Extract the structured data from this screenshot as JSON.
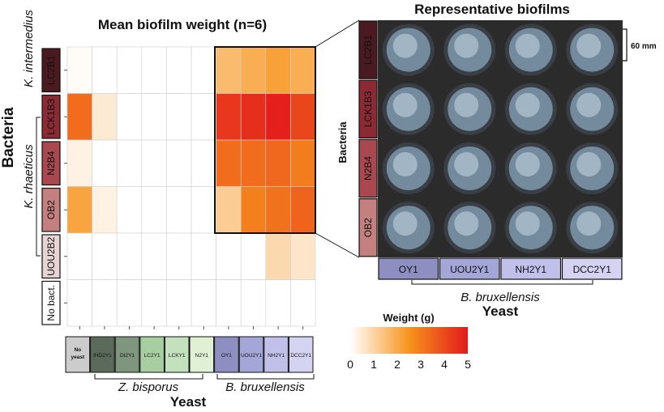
{
  "chart_data": [
    {
      "type": "heatmap",
      "title": "Mean biofilm weight (n=6)",
      "xlabel": "Yeast",
      "ylabel": "Bacteria",
      "x_categories": [
        "No yeast",
        "IHD2Y1",
        "DI2Y1",
        "LC2Y1",
        "LCKY1",
        "N2Y1",
        "OY1",
        "UOU2Y1",
        "NH2Y1",
        "DCC2Y1"
      ],
      "y_categories": [
        "LC2B1",
        "LCK1B3",
        "N2B4",
        "OB2",
        "UOU2B2",
        "No bact."
      ],
      "x_groups": [
        {
          "name": "Z. bisporus",
          "categories": [
            "IHD2Y1",
            "DI2Y1",
            "LC2Y1",
            "LCKY1",
            "N2Y1"
          ]
        },
        {
          "name": "B. bruxellensis",
          "categories": [
            "OY1",
            "UOU2Y1",
            "NH2Y1",
            "DCC2Y1"
          ]
        }
      ],
      "y_groups": [
        {
          "name": "K. intermedius",
          "categories": [
            "LC2B1"
          ]
        },
        {
          "name": "K. rhaeticus",
          "categories": [
            "LCK1B3",
            "N2B4",
            "OB2",
            "UOU2B2"
          ]
        }
      ],
      "values": [
        [
          0.1,
          0.0,
          0.0,
          0.0,
          0.0,
          0.0,
          1.6,
          1.9,
          2.2,
          1.9
        ],
        [
          3.3,
          0.5,
          0.0,
          0.0,
          0.0,
          0.0,
          4.4,
          4.6,
          4.9,
          4.1
        ],
        [
          0.3,
          0.0,
          0.0,
          0.0,
          0.0,
          0.0,
          3.3,
          3.3,
          3.4,
          3.0
        ],
        [
          2.1,
          0.3,
          0.0,
          0.0,
          0.0,
          0.0,
          1.2,
          2.9,
          3.2,
          3.5
        ],
        [
          0.0,
          0.0,
          0.0,
          0.0,
          0.0,
          0.0,
          0.0,
          0.0,
          0.9,
          0.6
        ],
        [
          0.0,
          0.0,
          0.0,
          0.0,
          0.0,
          0.0,
          0.0,
          0.0,
          0.0,
          0.0
        ]
      ],
      "legend": {
        "title": "Weight (g)",
        "ticks": [
          0,
          1,
          2,
          3,
          4,
          5
        ],
        "min": 0,
        "max": 5,
        "colors": [
          "#ffffff",
          "#f7941d",
          "#e31a1c"
        ]
      },
      "grid": true,
      "highlight": {
        "rows": [
          "LC2B1",
          "LCK1B3",
          "N2B4",
          "OB2"
        ],
        "columns": [
          "OY1",
          "UOU2Y1",
          "NH2Y1",
          "DCC2Y1"
        ]
      }
    },
    {
      "type": "image-grid",
      "title": "Representative biofilms",
      "xlabel": "Yeast",
      "ylabel": "Bacteria",
      "x_categories": [
        "OY1",
        "UOU2Y1",
        "NH2Y1",
        "DCC2Y1"
      ],
      "y_categories": [
        "LC2B1",
        "LCK1B3",
        "N2B4",
        "OB2"
      ],
      "x_group": "B. bruxellensis",
      "scale_label": "60 mm"
    }
  ],
  "colors": {
    "rows": [
      "#4a1a20",
      "#8c2a34",
      "#a9484f",
      "#c4807f",
      "#e8d4d4",
      "#ffffff"
    ],
    "rows_text": [
      "#ffffff",
      "#ffffff",
      "#ffffff",
      "#ffffff",
      "#222222",
      "#111111"
    ],
    "cols": [
      "#cccccc",
      "#5c6a5c",
      "#7e957e",
      "#a6cea0",
      "#c3e1bd",
      "#dff0d4",
      "#8e8fc0",
      "#a3a6d6",
      "#c0c0eb",
      "#d4d3f1"
    ],
    "cols_text": [
      "#111111",
      "#ffffff",
      "#ffffff",
      "#111111",
      "#111111",
      "#111111",
      "#ffffff",
      "#111111",
      "#111111",
      "#111111"
    ],
    "right_cols": [
      "#8e8fc0",
      "#a3a6d6",
      "#c0c0eb",
      "#d4d3f1"
    ],
    "photo_bg": "#2b2b2b"
  }
}
